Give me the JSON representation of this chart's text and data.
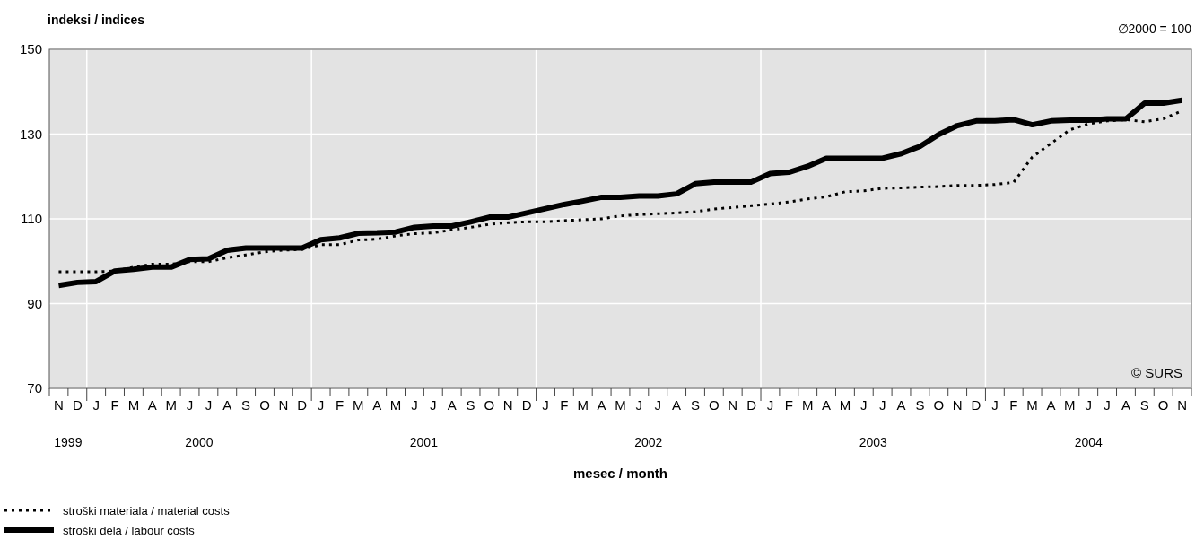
{
  "chart_data": {
    "type": "line",
    "ylabel": "indeksi / indices",
    "xlabel": "mesec / month",
    "annotations": [
      "∅2000 = 100",
      "© SURS",
      "1999",
      "2000",
      "2001",
      "2002",
      "2003",
      "2004"
    ],
    "categories": [
      "N",
      "D",
      "J",
      "F",
      "M",
      "A",
      "M",
      "J",
      "J",
      "A",
      "S",
      "O",
      "N",
      "D",
      "J",
      "F",
      "M",
      "A",
      "M",
      "J",
      "J",
      "A",
      "S",
      "O",
      "N",
      "D",
      "J",
      "F",
      "M",
      "A",
      "M",
      "J",
      "J",
      "A",
      "S",
      "O",
      "N",
      "D",
      "J",
      "F",
      "M",
      "A",
      "M",
      "J",
      "J",
      "A",
      "S",
      "O",
      "N",
      "D",
      "J",
      "F",
      "M",
      "A",
      "M",
      "J",
      "J",
      "A",
      "S",
      "O",
      "N"
    ],
    "series": [
      {
        "name": "stroški materiala / material costs",
        "color": "#000000",
        "line_style": "dotted",
        "values": [
          97.5,
          97.5,
          97.5,
          97.7,
          98.6,
          99.3,
          99.3,
          99.9,
          99.9,
          100.8,
          101.5,
          102.2,
          102.6,
          102.8,
          103.9,
          103.9,
          105.0,
          105.2,
          106.0,
          106.5,
          106.7,
          107.4,
          108.0,
          108.7,
          109.1,
          109.3,
          109.3,
          109.6,
          109.8,
          110.0,
          110.7,
          111.0,
          111.2,
          111.4,
          111.7,
          112.3,
          112.7,
          113.1,
          113.5,
          114.0,
          114.7,
          115.2,
          116.4,
          116.6,
          117.2,
          117.3,
          117.5,
          117.6,
          117.9,
          117.9,
          118.1,
          118.6,
          124.6,
          127.8,
          131.0,
          132.4,
          133.1,
          133.4,
          132.9,
          133.6,
          135.5
        ]
      },
      {
        "name": "stroški dela / labour costs",
        "color": "#000000",
        "line_style": "solid",
        "values": [
          94.3,
          95.0,
          95.2,
          97.7,
          98.1,
          98.6,
          98.6,
          100.4,
          100.6,
          102.6,
          103.1,
          103.1,
          103.1,
          103.1,
          105.1,
          105.5,
          106.6,
          106.7,
          106.9,
          108.0,
          108.3,
          108.3,
          109.3,
          110.4,
          110.4,
          111.4,
          112.4,
          113.4,
          114.2,
          115.1,
          115.1,
          115.4,
          115.4,
          115.9,
          118.3,
          118.7,
          118.7,
          118.7,
          120.7,
          121.0,
          122.4,
          124.3,
          124.3,
          124.3,
          124.3,
          125.4,
          127.1,
          129.9,
          132.0,
          133.1,
          133.1,
          133.4,
          132.2,
          133.1,
          133.3,
          133.3,
          133.6,
          133.6,
          137.3,
          137.3,
          138.0
        ]
      }
    ],
    "ylim": [
      70,
      150
    ],
    "yticks": [
      70,
      90,
      110,
      130,
      150
    ],
    "grid": true,
    "legend": "bottom left"
  }
}
